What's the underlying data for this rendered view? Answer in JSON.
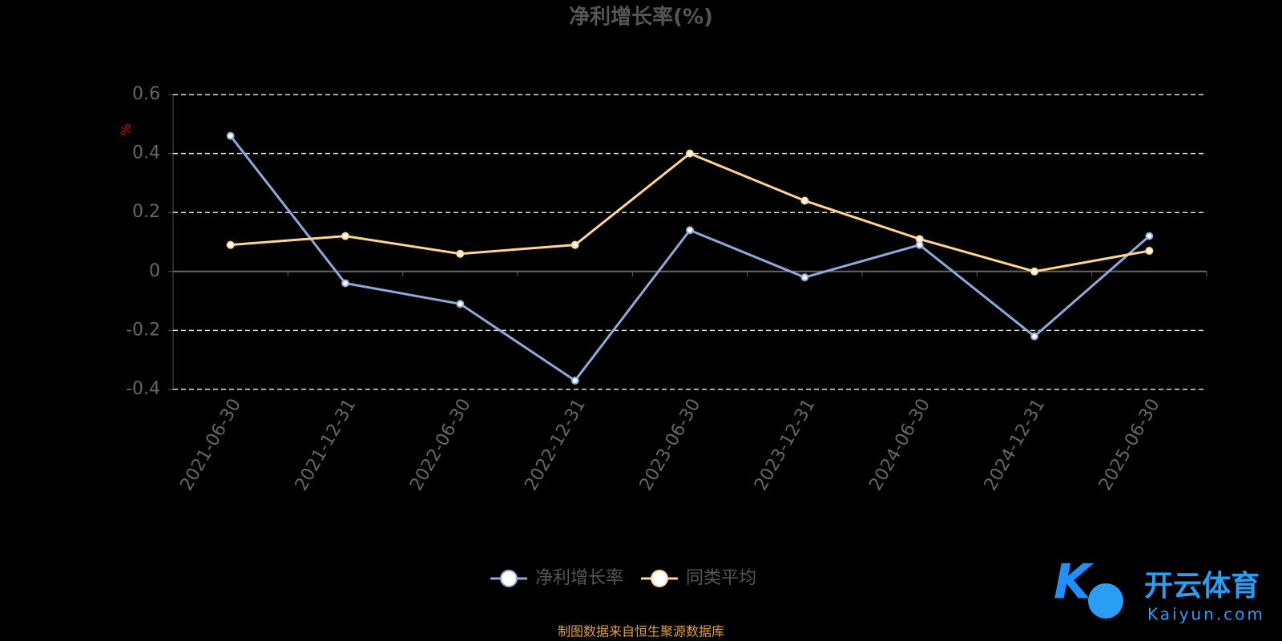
{
  "chart_data": {
    "type": "line",
    "title": "净利增长率(%)",
    "y_label": "%",
    "categories": [
      "2021-06-30",
      "2021-12-31",
      "2022-06-30",
      "2022-12-31",
      "2023-06-30",
      "2023-12-31",
      "2024-06-30",
      "2024-12-31",
      "2025-06-30"
    ],
    "series": [
      {
        "name": "净利增长率",
        "color": "#8eaadb",
        "values": [
          0.46,
          -0.04,
          -0.11,
          -0.37,
          0.14,
          -0.02,
          0.09,
          -0.22,
          0.12
        ]
      },
      {
        "name": "同类平均",
        "color": "#ffd591",
        "values": [
          0.09,
          0.12,
          0.06,
          0.09,
          0.4,
          0.24,
          0.11,
          0.0,
          0.07
        ]
      }
    ],
    "ylim": [
      -0.4,
      0.6
    ],
    "yticks": [
      -0.4,
      -0.2,
      0,
      0.2,
      0.4,
      0.6
    ],
    "grid": true,
    "legend": "bottom",
    "source": "制图数据来自恒生聚源数据库"
  },
  "watermark": {
    "name": "开云体育",
    "url": "Kaiyun.com"
  }
}
